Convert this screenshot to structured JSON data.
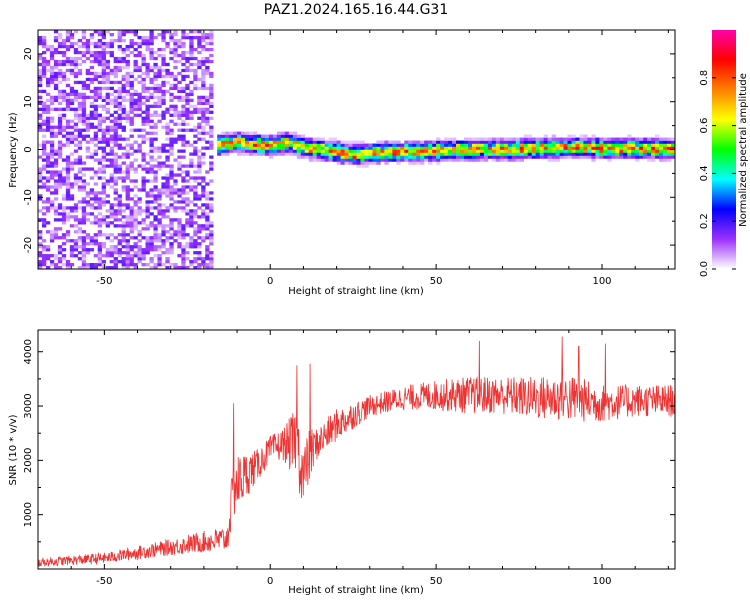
{
  "figure": {
    "title": "PAZ1.2024.165.16.44.G31"
  },
  "chart_data": [
    {
      "type": "heatmap",
      "xlabel": "Height of straight line (km)",
      "ylabel": "Frequency (Hz)",
      "xlim": [
        -70,
        122
      ],
      "ylim": [
        -25,
        25
      ],
      "x_ticks": [
        -50,
        0,
        50,
        100
      ],
      "y_ticks": [
        -20,
        -10,
        0,
        10,
        20
      ],
      "colorbar": {
        "label": "Normalized spectral amplitude",
        "range": [
          0,
          1
        ],
        "ticks": [
          0.0,
          0.2,
          0.4,
          0.6,
          0.8
        ],
        "colormap": "rainbow-white-to-magenta",
        "colors": [
          "#ffffff",
          "#9b30ff",
          "#0000ff",
          "#00ffff",
          "#00ff00",
          "#ffff00",
          "#ff8000",
          "#ff0000",
          "#ff00aa"
        ]
      },
      "noise_region_x": [
        -70,
        -17
      ],
      "noise_amplitude": 0.12,
      "signal_trace": {
        "x": [
          -16,
          -10,
          -5,
          0,
          5,
          10,
          15,
          20,
          25,
          30,
          35,
          40,
          50,
          60,
          70,
          80,
          90,
          100,
          110,
          122
        ],
        "freq": [
          1.0,
          1.5,
          1.2,
          0.8,
          1.5,
          0.5,
          0.0,
          -0.5,
          -1.0,
          -0.8,
          -0.5,
          -0.5,
          -0.2,
          0.0,
          0.0,
          0.2,
          0.5,
          0.3,
          0.2,
          0.2
        ],
        "amplitude": 0.85,
        "halfwidth_hz": 1.5
      }
    },
    {
      "type": "line",
      "xlabel": "Height of straight line (km)",
      "ylabel": "SNR (10 * v/v)",
      "xlim": [
        -70,
        122
      ],
      "ylim": [
        0,
        4400
      ],
      "x_ticks": [
        -50,
        0,
        50,
        100
      ],
      "y_ticks": [
        1000,
        2000,
        3000,
        4000
      ],
      "grid": false,
      "series": [
        {
          "color": "#ee3333",
          "envelope_x": [
            -70,
            -50,
            -30,
            -20,
            -13,
            -11,
            -8,
            -4,
            0,
            4,
            8,
            10,
            12,
            14,
            20,
            30,
            40,
            50,
            60,
            70,
            80,
            90,
            100,
            110,
            122
          ],
          "envelope_mean": [
            120,
            200,
            400,
            500,
            550,
            1500,
            1700,
            1900,
            2200,
            2300,
            2300,
            1700,
            2100,
            2300,
            2650,
            3000,
            3150,
            3200,
            3200,
            3200,
            3150,
            3150,
            3050,
            3100,
            3100
          ],
          "envelope_spread": [
            80,
            100,
            150,
            200,
            250,
            600,
            450,
            300,
            250,
            300,
            700,
            600,
            500,
            300,
            300,
            200,
            220,
            280,
            350,
            350,
            400,
            450,
            350,
            300,
            300
          ],
          "spikes": [
            [
              -11,
              3050
            ],
            [
              8,
              3750
            ],
            [
              12,
              3780
            ],
            [
              63,
              4200
            ],
            [
              88,
              4280
            ],
            [
              93,
              4100
            ],
            [
              101,
              4150
            ]
          ]
        }
      ]
    }
  ]
}
